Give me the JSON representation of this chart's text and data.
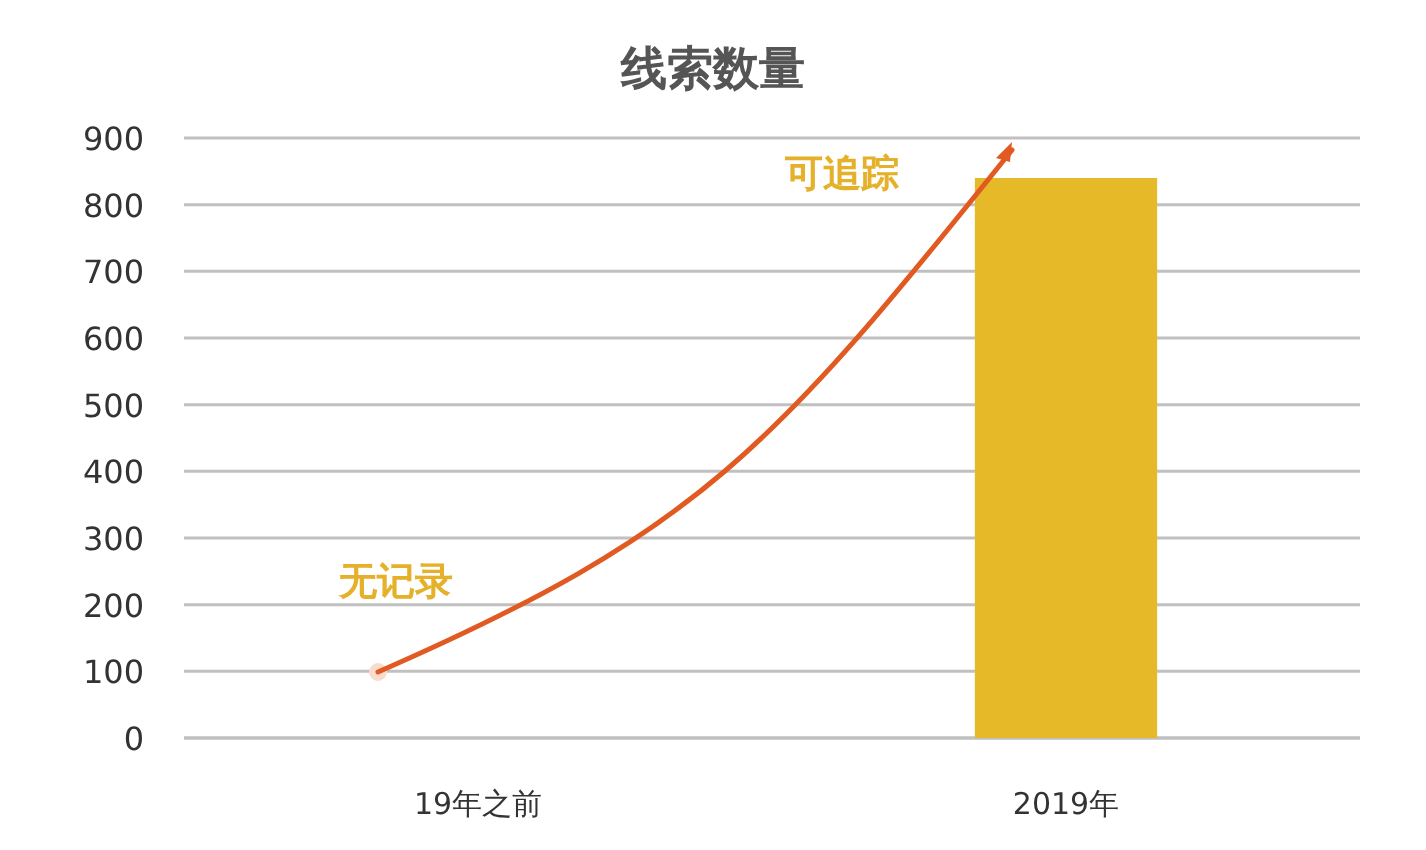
{
  "chart_data": {
    "type": "bar",
    "title": "线索数量",
    "categories": [
      "19年之前",
      "2019年"
    ],
    "series": [
      {
        "color": "#e6b929",
        "values": [
          null,
          840
        ]
      }
    ],
    "ylim": [
      0,
      900
    ],
    "yticks": [
      0,
      100,
      200,
      300,
      400,
      500,
      600,
      700,
      800,
      900
    ],
    "grid": "y",
    "annotations": [
      "无记录",
      "可追踪"
    ]
  }
}
